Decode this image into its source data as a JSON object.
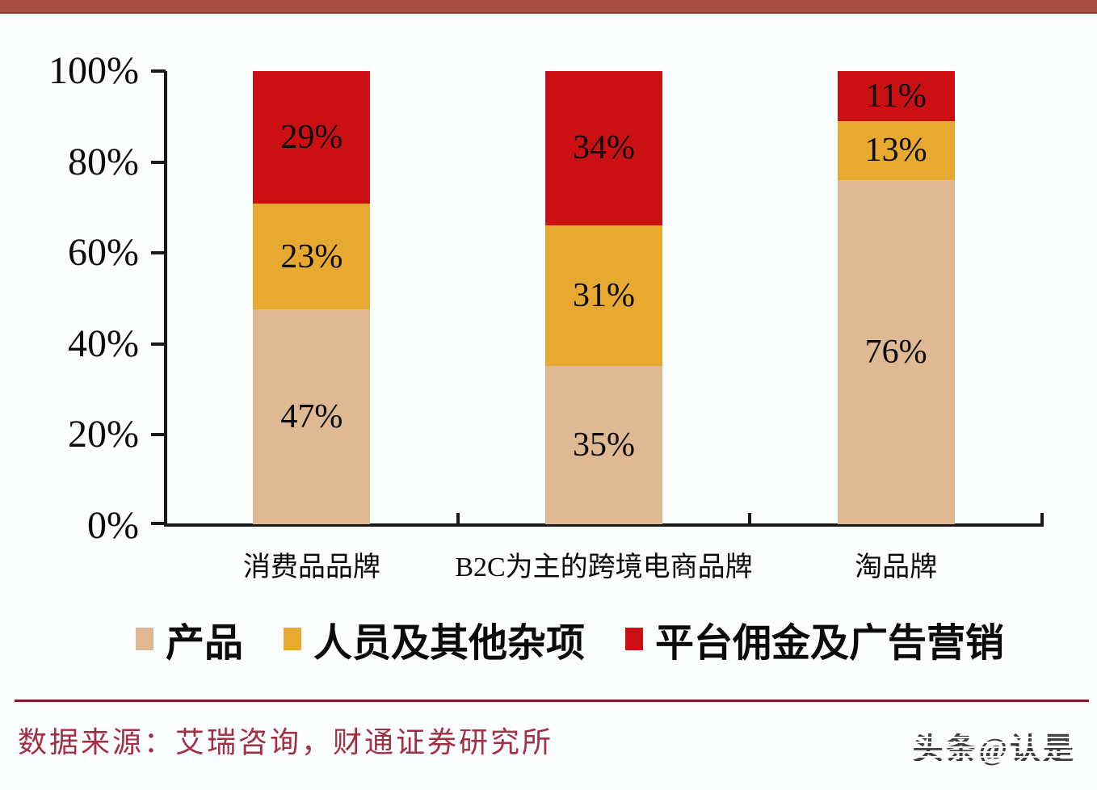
{
  "page": {
    "background": "#FCFDFE",
    "top_banner_color": "#A84B41"
  },
  "chart_data": {
    "type": "bar",
    "stacked": true,
    "percent_stacked": true,
    "title": "",
    "xlabel": "",
    "ylabel": "",
    "categories": [
      "消费品品牌",
      "B2C为主的跨境电商品牌",
      "淘品牌"
    ],
    "series": [
      {
        "name": "产品",
        "color": "#DFB993",
        "values": [
          47,
          35,
          76
        ]
      },
      {
        "name": "人员及其他杂项",
        "color": "#E7A92F",
        "values": [
          23,
          31,
          13
        ]
      },
      {
        "name": "平台佣金及广告营销",
        "color": "#CB1013",
        "values": [
          29,
          34,
          11
        ]
      }
    ],
    "value_label_suffix": "%",
    "y_axis": {
      "min": 0,
      "max": 100,
      "ticks": [
        "100%",
        "80%",
        "60%",
        "40%",
        "20%",
        "0%"
      ]
    },
    "grid": false,
    "legend_position": "bottom",
    "axis_color": "#1A1A1A"
  },
  "footer": {
    "divider_color": "#7E1F26",
    "source": "数据来源：艾瑞咨询，财通证券研究所",
    "source_color": "#A23045",
    "watermark": "头条@认是"
  }
}
